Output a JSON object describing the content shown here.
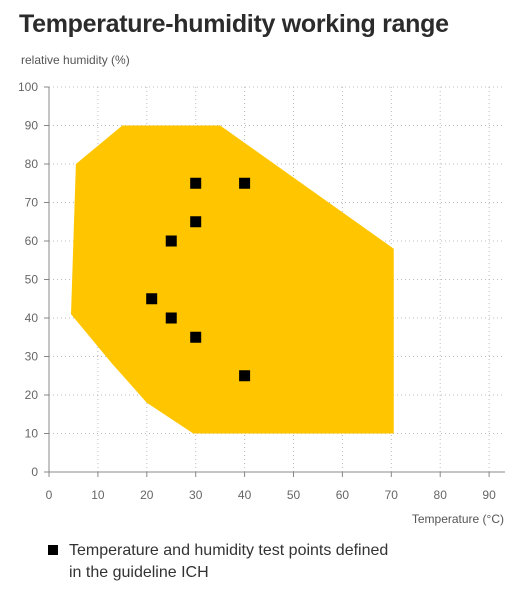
{
  "chart_data": {
    "type": "scatter",
    "title": "Temperature-humidity working range",
    "xlabel": "Temperature (°C)",
    "ylabel": "relative humidity (%)",
    "xlim": [
      0,
      100
    ],
    "ylim": [
      0,
      100
    ],
    "xticks": [
      0,
      10,
      20,
      30,
      40,
      50,
      60,
      70,
      80,
      90
    ],
    "yticks": [
      0,
      10,
      20,
      30,
      40,
      50,
      60,
      70,
      80,
      90,
      100
    ],
    "grid": true,
    "working_range": {
      "type": "area",
      "color": "#FFC600",
      "points": [
        {
          "x": 5.5,
          "y": 80
        },
        {
          "x": 15,
          "y": 90
        },
        {
          "x": 35,
          "y": 90
        },
        {
          "x": 70.5,
          "y": 58
        },
        {
          "x": 70.5,
          "y": 10
        },
        {
          "x": 29.5,
          "y": 10
        },
        {
          "x": 20,
          "y": 18
        },
        {
          "x": 13,
          "y": 28
        },
        {
          "x": 4.5,
          "y": 41
        }
      ]
    },
    "series": [
      {
        "name": "Temperature and humidity test points defined in the guideline ICH",
        "color": "#000000",
        "marker": "square",
        "points": [
          {
            "x": 30,
            "y": 75
          },
          {
            "x": 40,
            "y": 75
          },
          {
            "x": 30,
            "y": 65
          },
          {
            "x": 25,
            "y": 60
          },
          {
            "x": 21,
            "y": 45
          },
          {
            "x": 25,
            "y": 40
          },
          {
            "x": 30,
            "y": 35
          },
          {
            "x": 40,
            "y": 25
          }
        ]
      }
    ],
    "legend": {
      "position": "bottom",
      "label": "Temperature and humidity test points defined in the guideline ICH"
    }
  }
}
